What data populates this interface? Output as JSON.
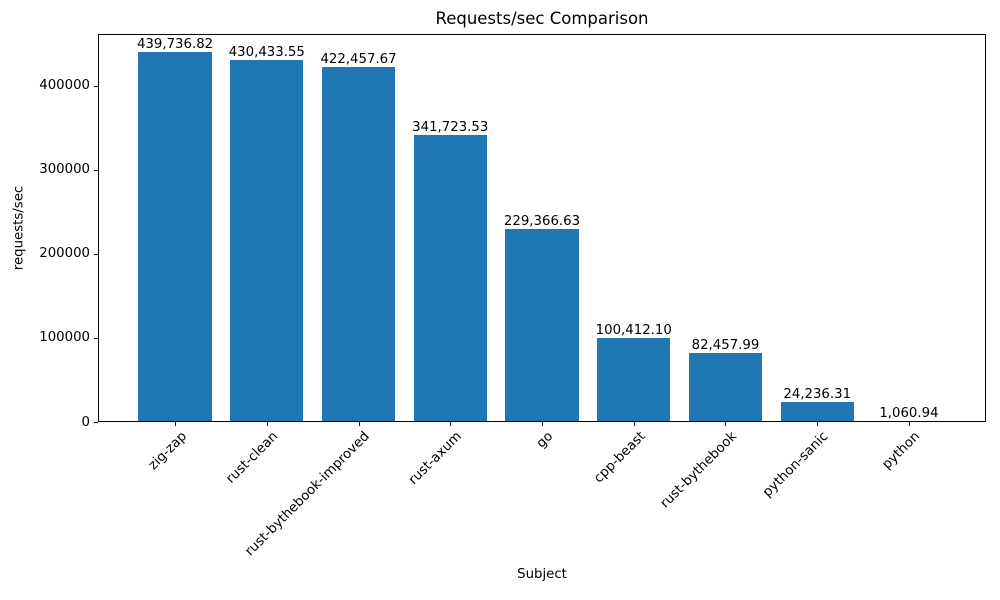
{
  "chart_data": {
    "type": "bar",
    "title": "Requests/sec Comparison",
    "xlabel": "Subject",
    "ylabel": "requests/sec",
    "categories": [
      "zig-zap",
      "rust-clean",
      "rust-bythebook-improved",
      "rust-axum",
      "go",
      "cpp-beast",
      "rust-bythebook",
      "python-sanic",
      "python"
    ],
    "values": [
      439736.82,
      430433.55,
      422457.67,
      341723.53,
      229366.63,
      100412.1,
      82457.99,
      24236.31,
      1060.94
    ],
    "value_labels": [
      "439,736.82",
      "430,433.55",
      "422,457.67",
      "341,723.53",
      "229,366.63",
      "100,412.10",
      "82,457.99",
      "24,236.31",
      "1,060.94"
    ],
    "ytick_values": [
      0,
      100000,
      200000,
      300000,
      400000
    ],
    "ytick_labels": [
      "0",
      "100000",
      "200000",
      "300000",
      "400000"
    ],
    "ylim": [
      0,
      461723.66
    ],
    "bar_color": "#1f77b4",
    "grid": false,
    "legend_position": "none",
    "x_tick_rotation_deg": 45
  }
}
